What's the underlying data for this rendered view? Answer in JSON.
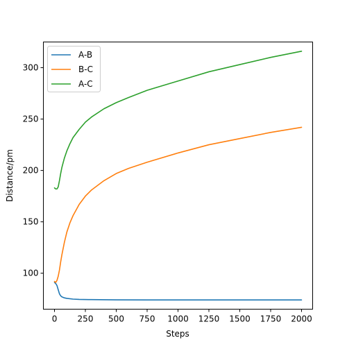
{
  "chart_data": {
    "type": "line",
    "title": "",
    "xlabel": "Steps",
    "ylabel": "Distance/pm",
    "xlim": [
      -90,
      2090
    ],
    "ylim": [
      65,
      325
    ],
    "xticks": [
      0,
      250,
      500,
      750,
      1000,
      1250,
      1500,
      1750,
      2000
    ],
    "xtick_labels": [
      "0",
      "250",
      "500",
      "750",
      "1000",
      "1250",
      "1500",
      "1750",
      "2000"
    ],
    "yticks": [
      100,
      150,
      200,
      250,
      300
    ],
    "ytick_labels": [
      "100",
      "150",
      "200",
      "250",
      "300"
    ],
    "grid": false,
    "legend_position": "top-left",
    "series": [
      {
        "name": "A-B",
        "color": "#1f77b4",
        "x": [
          0,
          10,
          20,
          30,
          40,
          50,
          60,
          80,
          100,
          150,
          200,
          300,
          500,
          750,
          1000,
          1500,
          2000
        ],
        "y": [
          91,
          90,
          88,
          84,
          80,
          78,
          77,
          76,
          75.5,
          74.8,
          74.5,
          74.3,
          74.1,
          74.0,
          74.0,
          74.0,
          74.0
        ]
      },
      {
        "name": "B-C",
        "color": "#ff7f0e",
        "x": [
          0,
          10,
          20,
          30,
          40,
          50,
          60,
          80,
          100,
          125,
          150,
          200,
          250,
          300,
          400,
          500,
          600,
          750,
          1000,
          1250,
          1500,
          1750,
          2000
        ],
        "y": [
          92,
          91,
          93,
          97,
          103,
          111,
          118,
          130,
          140,
          149,
          156,
          167,
          175,
          181,
          190,
          197,
          202,
          208,
          217,
          225,
          231,
          237,
          242
        ]
      },
      {
        "name": "A-C",
        "color": "#2ca02c",
        "x": [
          0,
          10,
          20,
          30,
          40,
          50,
          60,
          80,
          100,
          125,
          150,
          200,
          250,
          300,
          400,
          500,
          600,
          750,
          1000,
          1250,
          1500,
          1750,
          2000
        ],
        "y": [
          183,
          182,
          182,
          184,
          190,
          197,
          203,
          212,
          219,
          226,
          232,
          240,
          247,
          252,
          260,
          266,
          271,
          278,
          287,
          296,
          303,
          310,
          316
        ]
      }
    ]
  }
}
